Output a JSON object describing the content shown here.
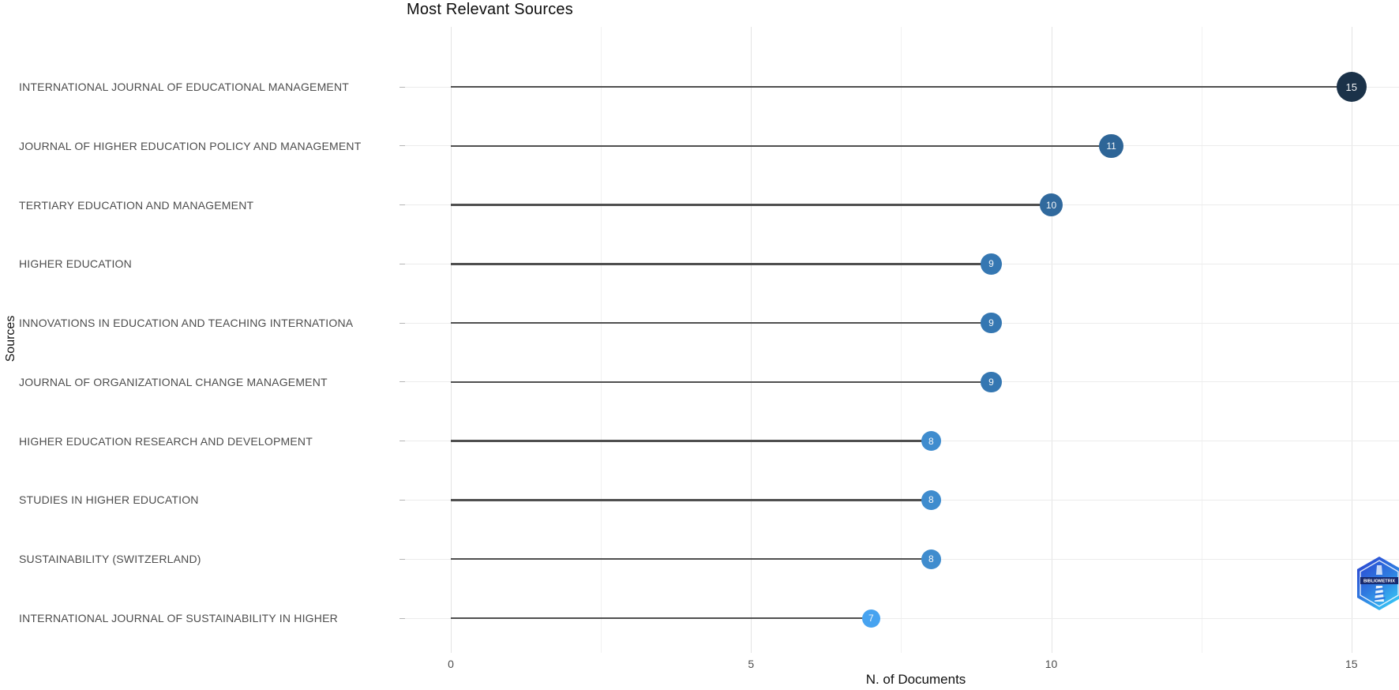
{
  "title": "Most Relevant Sources",
  "chart_data": {
    "type": "bar",
    "subtype": "horizontal-lollipop",
    "title": "Most Relevant Sources",
    "xlabel": "N. of Documents",
    "ylabel": "Sources",
    "categories": [
      "INTERNATIONAL JOURNAL OF EDUCATIONAL MANAGEMENT",
      "JOURNAL OF HIGHER EDUCATION POLICY AND MANAGEMENT",
      "TERTIARY EDUCATION AND MANAGEMENT",
      "HIGHER EDUCATION",
      "INNOVATIONS IN EDUCATION AND TEACHING INTERNATIONA",
      "JOURNAL OF ORGANIZATIONAL CHANGE MANAGEMENT",
      "HIGHER EDUCATION RESEARCH AND DEVELOPMENT",
      "STUDIES IN HIGHER EDUCATION",
      "SUSTAINABILITY (SWITZERLAND)",
      "INTERNATIONAL JOURNAL OF SUSTAINABILITY IN HIGHER"
    ],
    "values": [
      15,
      11,
      10,
      9,
      9,
      9,
      8,
      8,
      8,
      7
    ],
    "x_ticks": [
      0,
      5,
      10,
      15
    ],
    "x_minor_ticks": [
      2.5,
      7.5,
      12.5
    ],
    "xlim": [
      0,
      15.8
    ],
    "grid": true,
    "legend": false,
    "stem_color": "#4f4f4f",
    "point_color_by_value": {
      "7": "#47A3F0",
      "8": "#3F8CCE",
      "9": "#3577B2",
      "10": "#30699D",
      "11": "#2E6597",
      "15": "#1B3249"
    },
    "point_label_color": "#ffffff"
  },
  "logo": {
    "name": "bibliometrix",
    "band_text": "BIBLIOMETRIX"
  }
}
